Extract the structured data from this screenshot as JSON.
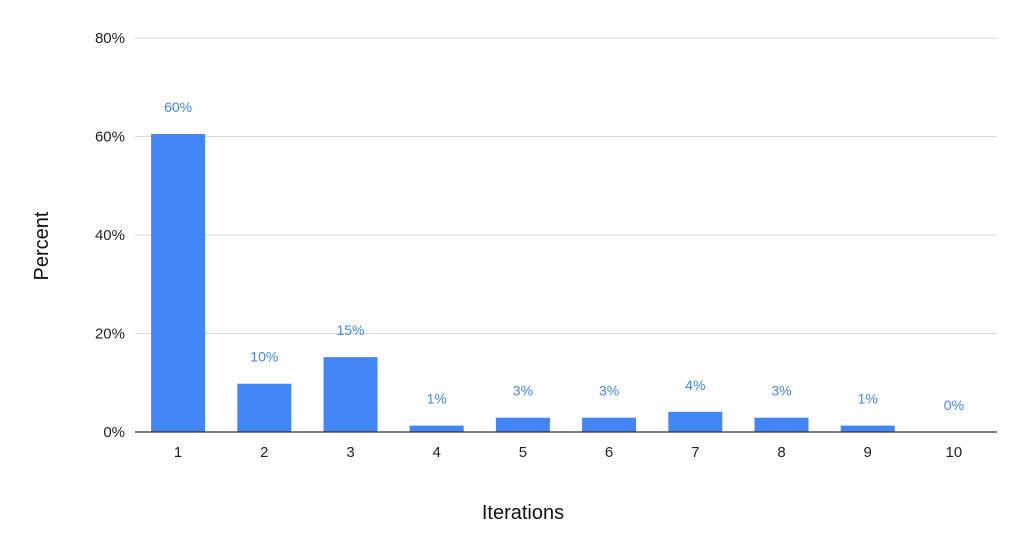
{
  "chart_data": {
    "type": "bar",
    "title": "",
    "xlabel": "Iterations",
    "ylabel": "Percent",
    "categories": [
      "1",
      "2",
      "3",
      "4",
      "5",
      "6",
      "7",
      "8",
      "9",
      "10"
    ],
    "values": [
      60.5,
      9.8,
      15.2,
      1.3,
      2.9,
      2.9,
      4.1,
      2.9,
      1.3,
      0
    ],
    "data_labels": [
      "60%",
      "10%",
      "15%",
      "1%",
      "3%",
      "3%",
      "4%",
      "3%",
      "1%",
      "0%"
    ],
    "ylim": [
      0,
      80
    ],
    "y_ticks": [
      0,
      20,
      40,
      60,
      80
    ],
    "y_tick_labels": [
      "0%",
      "20%",
      "40%",
      "60%",
      "80%"
    ],
    "grid": true,
    "legend": "none",
    "colors": {
      "bar": "#4285f4",
      "data_label": "#4285f4",
      "grid": "#d9d9d9",
      "axis": "#333333"
    }
  }
}
